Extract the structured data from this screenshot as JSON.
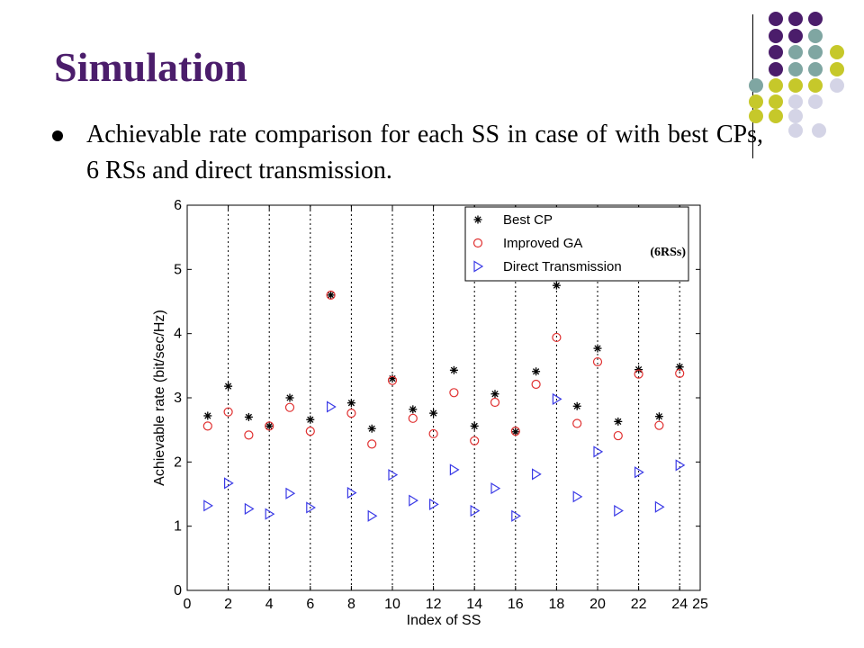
{
  "slide": {
    "title": "Simulation",
    "bullet": "Achievable rate comparison for each SS in case of with best CPs, 6 RSs and direct transmission."
  },
  "decoration": {
    "dot_colors": {
      "purple": "#4b1d6b",
      "teal": "#7fa6a2",
      "lime": "#c6c82a",
      "lavender": "#d4d4e6"
    }
  },
  "chart_data": {
    "type": "scatter",
    "xlabel": "Index of SS",
    "ylabel": "Achievable rate (bit/sec/Hz)",
    "xlim": [
      0,
      25
    ],
    "ylim": [
      0,
      6
    ],
    "x_ticks": [
      "0",
      "2",
      "4",
      "6",
      "8",
      "10",
      "12",
      "14",
      "16",
      "18",
      "20",
      "22",
      "24",
      "25"
    ],
    "y_ticks": [
      "0",
      "1",
      "2",
      "3",
      "4",
      "5",
      "6"
    ],
    "vertical_dotted_grid_at": [
      2,
      4,
      6,
      8,
      10,
      12,
      14,
      16,
      18,
      20,
      22,
      24
    ],
    "legend_placement": "top-right",
    "annotation": "(6RSs)",
    "x": [
      1,
      2,
      3,
      4,
      5,
      6,
      7,
      8,
      9,
      10,
      11,
      12,
      13,
      14,
      15,
      16,
      17,
      18,
      19,
      20,
      21,
      22,
      23,
      24
    ],
    "series": [
      {
        "name": "Best CP",
        "marker": "star",
        "color": "#000000",
        "values": [
          2.72,
          3.18,
          2.7,
          2.56,
          3.0,
          2.66,
          4.6,
          2.92,
          2.52,
          3.3,
          2.82,
          2.76,
          3.43,
          2.56,
          3.06,
          2.47,
          3.41,
          4.75,
          2.87,
          3.77,
          2.63,
          3.44,
          2.71,
          3.48
        ]
      },
      {
        "name": "Improved GA",
        "marker": "circle",
        "color": "#e03030",
        "values": [
          2.56,
          2.78,
          2.42,
          2.56,
          2.85,
          2.48,
          4.6,
          2.76,
          2.28,
          3.27,
          2.68,
          2.44,
          3.08,
          2.33,
          2.93,
          2.48,
          3.21,
          3.94,
          2.6,
          3.56,
          2.41,
          3.37,
          2.57,
          3.38
        ]
      },
      {
        "name": "Direct Transmission",
        "marker": "triangle-right",
        "color": "#3a3ae6",
        "values": [
          1.32,
          1.67,
          1.27,
          1.19,
          1.51,
          1.29,
          2.86,
          1.52,
          1.16,
          1.8,
          1.4,
          1.34,
          1.88,
          1.24,
          1.59,
          1.16,
          1.81,
          2.98,
          1.46,
          2.16,
          1.24,
          1.84,
          1.3,
          1.95
        ]
      }
    ]
  }
}
